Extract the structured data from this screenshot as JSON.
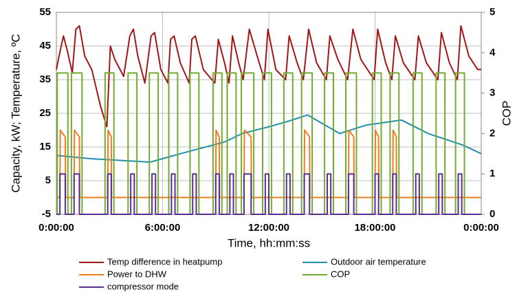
{
  "chart_data": {
    "type": "line",
    "y_label": "Capacity, kW; Temperature, ºC",
    "y2_label": "COP",
    "x_label": "Time, hh:mm:ss",
    "xlim": [
      0,
      24
    ],
    "xticks": [
      {
        "value": 0,
        "label": "0:00:00"
      },
      {
        "value": 6,
        "label": "6:00:00"
      },
      {
        "value": 12,
        "label": "12:00:00"
      },
      {
        "value": 18,
        "label": "18:00:00"
      },
      {
        "value": 24,
        "label": "0:00:00"
      }
    ],
    "ylim": [
      -5,
      55
    ],
    "yticks": [
      -5,
      5,
      15,
      25,
      35,
      45,
      55
    ],
    "y2lim": [
      0,
      5
    ],
    "y2ticks": [
      0,
      1,
      2,
      3,
      4,
      5
    ],
    "grid": true,
    "legend": "bottom",
    "series": [
      {
        "name": "Temp difference in heatpump",
        "color": "#a31515",
        "x": [
          0,
          0.15,
          0.4,
          0.6,
          0.9,
          1.1,
          1.3,
          1.6,
          2.0,
          2.5,
          2.85,
          3.05,
          3.3,
          3.8,
          4.15,
          4.35,
          4.6,
          5.0,
          5.35,
          5.55,
          5.9,
          6.3,
          6.45,
          6.65,
          7.0,
          7.5,
          7.65,
          7.85,
          8.3,
          8.95,
          9.15,
          9.5,
          9.75,
          9.95,
          10.3,
          10.55,
          10.9,
          11.4,
          11.75,
          11.95,
          12.4,
          12.95,
          13.15,
          13.6,
          13.95,
          14.25,
          14.7,
          15.25,
          15.45,
          15.9,
          16.45,
          16.75,
          17.2,
          17.95,
          18.15,
          18.6,
          18.95,
          19.15,
          19.6,
          20.25,
          20.45,
          20.9,
          21.55,
          21.75,
          22.2,
          22.65,
          22.85,
          23.3,
          23.8,
          24
        ],
        "values": [
          38,
          42,
          48,
          44,
          37,
          50,
          51,
          42,
          38,
          27,
          21,
          45,
          41,
          36,
          48,
          50,
          42,
          34,
          48,
          49,
          38,
          34,
          47,
          48,
          40,
          34,
          47,
          48,
          38,
          34,
          47,
          40,
          34,
          48,
          40,
          35,
          50,
          41,
          35,
          50,
          38,
          35,
          48,
          40,
          35,
          50,
          40,
          35,
          48,
          41,
          35,
          50,
          41,
          35,
          50,
          40,
          35,
          48,
          40,
          35,
          48,
          40,
          35,
          49,
          40,
          35,
          51,
          42,
          38,
          38
        ]
      },
      {
        "name": "Outdoor air temperature",
        "color": "#1f8fb0",
        "x": [
          0,
          2,
          5.3,
          7,
          9.5,
          10.5,
          12,
          13,
          14.2,
          16,
          17.5,
          19.5,
          21,
          23,
          24
        ],
        "values": [
          12.5,
          11.5,
          10.5,
          13,
          16.5,
          19,
          21,
          22.5,
          24.5,
          19,
          21.5,
          23,
          19,
          15.5,
          13
        ]
      },
      {
        "name": "Power to DHW",
        "color": "#f07c1e",
        "x": [
          0,
          0.2,
          0.22,
          0.5,
          0.52,
          1.0,
          1.02,
          1.3,
          1.32,
          2.9,
          2.92,
          3.1,
          3.12,
          9.0,
          9.02,
          9.2,
          9.22,
          10.6,
          10.62,
          11.0,
          11.02,
          14.0,
          14.02,
          14.3,
          14.32,
          16.5,
          16.52,
          16.8,
          16.82,
          18.0,
          18.02,
          18.2,
          18.22,
          19.0,
          19.02,
          19.2,
          19.22,
          24
        ],
        "values": [
          0,
          0,
          20,
          18,
          0,
          0,
          20,
          18,
          0,
          0,
          20,
          18,
          0,
          0,
          20,
          18,
          0,
          0,
          20,
          18,
          0,
          0,
          20,
          18,
          0,
          0,
          20,
          18,
          0,
          0,
          20,
          18,
          0,
          0,
          20,
          18,
          0,
          0
        ]
      },
      {
        "name": "COP",
        "color": "#70ad2f",
        "axis": "y2",
        "x": [
          0,
          0.05,
          0.05,
          0.65,
          0.65,
          0.85,
          0.85,
          1.45,
          1.45,
          2.75,
          2.75,
          3.25,
          3.25,
          4.05,
          4.05,
          4.55,
          4.55,
          5.25,
          5.25,
          5.75,
          5.75,
          6.35,
          6.35,
          6.85,
          6.85,
          7.55,
          7.55,
          8.05,
          8.05,
          8.85,
          8.85,
          9.35,
          9.35,
          9.65,
          9.65,
          10.15,
          10.15,
          10.45,
          10.45,
          11.15,
          11.15,
          11.65,
          11.65,
          12.15,
          12.15,
          12.85,
          12.85,
          13.35,
          13.35,
          13.85,
          13.85,
          14.45,
          14.45,
          15.15,
          15.15,
          15.65,
          15.65,
          16.35,
          16.35,
          16.95,
          16.95,
          17.85,
          17.85,
          18.35,
          18.35,
          18.85,
          18.85,
          19.35,
          19.35,
          20.15,
          20.15,
          20.65,
          20.65,
          21.45,
          21.45,
          21.95,
          21.95,
          22.55,
          22.55,
          23.05,
          23.05,
          24
        ],
        "values": [
          0,
          0,
          3.5,
          3.5,
          0,
          0,
          3.5,
          3.5,
          0,
          0,
          3.5,
          3.5,
          0,
          0,
          3.5,
          3.5,
          0,
          0,
          3.5,
          3.5,
          0,
          0,
          3.5,
          3.5,
          0,
          0,
          3.5,
          3.5,
          0,
          0,
          3.5,
          3.5,
          0,
          0,
          3.5,
          3.5,
          0,
          0,
          3.5,
          3.5,
          0,
          0,
          3.5,
          3.5,
          0,
          0,
          3.5,
          3.5,
          0,
          0,
          3.5,
          3.5,
          0,
          0,
          3.5,
          3.5,
          0,
          0,
          3.5,
          3.5,
          0,
          0,
          3.5,
          3.5,
          0,
          0,
          3.5,
          3.5,
          0,
          0,
          3.5,
          3.5,
          0,
          0,
          3.5,
          3.5,
          0,
          0,
          3.5,
          3.5,
          0,
          0
        ]
      },
      {
        "name": "compressor mode",
        "color": "#5a2d91",
        "axis": "y2",
        "x": [
          0,
          0.2,
          0.2,
          0.5,
          0.5,
          1.0,
          1.0,
          1.3,
          1.3,
          2.9,
          2.9,
          3.1,
          3.1,
          4.2,
          4.2,
          4.4,
          4.4,
          5.4,
          5.4,
          5.6,
          5.6,
          6.5,
          6.5,
          6.7,
          6.7,
          7.7,
          7.7,
          7.9,
          7.9,
          9.0,
          9.0,
          9.2,
          9.2,
          9.8,
          9.8,
          10.0,
          10.0,
          10.6,
          10.6,
          11.0,
          11.0,
          11.8,
          11.8,
          12.0,
          12.0,
          13.0,
          13.0,
          13.2,
          13.2,
          14.0,
          14.0,
          14.3,
          14.3,
          15.3,
          15.3,
          15.5,
          15.5,
          16.5,
          16.5,
          16.8,
          16.8,
          18.0,
          18.0,
          18.2,
          18.2,
          19.0,
          19.0,
          19.2,
          19.2,
          20.3,
          20.3,
          20.5,
          20.5,
          21.6,
          21.6,
          21.8,
          21.8,
          22.7,
          22.7,
          22.9,
          22.9,
          24
        ],
        "values": [
          0,
          0,
          1,
          1,
          0,
          0,
          1,
          1,
          0,
          0,
          1,
          1,
          0,
          0,
          1,
          1,
          0,
          0,
          1,
          1,
          0,
          0,
          1,
          1,
          0,
          0,
          1,
          1,
          0,
          0,
          1,
          1,
          0,
          0,
          1,
          1,
          0,
          0,
          1,
          1,
          0,
          0,
          1,
          1,
          0,
          0,
          1,
          1,
          0,
          0,
          1,
          1,
          0,
          0,
          1,
          1,
          0,
          0,
          1,
          1,
          0,
          0,
          1,
          1,
          0,
          0,
          1,
          1,
          0,
          0,
          1,
          1,
          0,
          0,
          1,
          1,
          0,
          0,
          1,
          1,
          0,
          0
        ]
      }
    ]
  }
}
